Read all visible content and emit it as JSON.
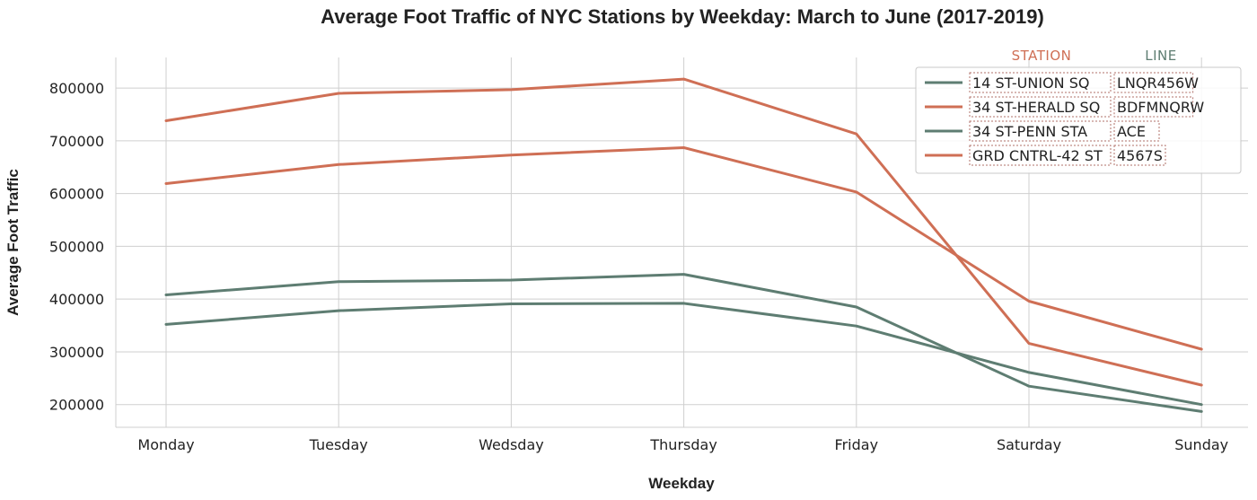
{
  "chart_data": {
    "type": "line",
    "title": "Average Foot Traffic of NYC Stations by Weekday: March to June (2017-2019)",
    "xlabel": "Weekday",
    "ylabel": "Average Foot Traffic",
    "categories": [
      "Monday",
      "Tuesday",
      "Wedsday",
      "Thursday",
      "Friday",
      "Saturday",
      "Sunday"
    ],
    "ylim": [
      157000,
      858000
    ],
    "yticks": [
      200000,
      300000,
      400000,
      500000,
      600000,
      700000,
      800000
    ],
    "ytick_labels": [
      "200000",
      "300000",
      "400000",
      "500000",
      "600000",
      "700000",
      "800000"
    ],
    "grid": true,
    "legend_placement": "top-right",
    "legend_headers": {
      "station": "STATION",
      "line": "LINE"
    },
    "series": [
      {
        "station": "14 ST-UNION SQ",
        "line": "LNQR456W",
        "color": "#5e7d72",
        "values": [
          352000,
          378000,
          391000,
          392000,
          349000,
          261000,
          200000
        ]
      },
      {
        "station": "34 ST-HERALD SQ",
        "line": "BDFMNQRW",
        "color": "#cf6f55",
        "values": [
          619000,
          655000,
          673000,
          687000,
          603000,
          396000,
          305000
        ]
      },
      {
        "station": "34 ST-PENN STA",
        "line": "ACE",
        "color": "#5e7d72",
        "values": [
          408000,
          433000,
          436000,
          447000,
          385000,
          235000,
          187000
        ]
      },
      {
        "station": "GRD CNTRL-42 ST",
        "line": "4567S",
        "color": "#cf6f55",
        "values": [
          738000,
          790000,
          797000,
          817000,
          713000,
          316000,
          237000
        ]
      }
    ],
    "colors": {
      "station_header": "#cf6f55",
      "line_header": "#5e7d72",
      "grid": "#cfcfcf"
    }
  }
}
